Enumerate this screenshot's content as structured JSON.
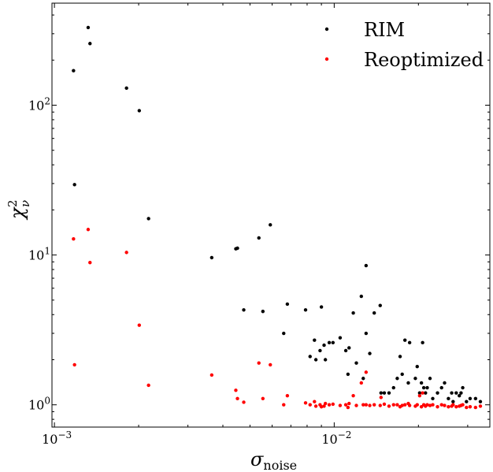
{
  "chart_data": {
    "type": "scatter",
    "xlabel": "σ",
    "xlabel_sub": "noise",
    "ylabel": "χ",
    "ylabel_sup": "2",
    "ylabel_sub": "ν",
    "xscale": "log",
    "yscale": "log",
    "xlim": [
      0.00098,
      0.036
    ],
    "ylim": [
      0.71,
      480
    ],
    "grid": false,
    "legend_position": "top-right",
    "x_ticks": [
      {
        "value": 0.001,
        "base": "10",
        "exp": "−3"
      },
      {
        "value": 0.01,
        "base": "10",
        "exp": "−2"
      }
    ],
    "y_ticks": [
      {
        "value": 1,
        "base": "10",
        "exp": "0"
      },
      {
        "value": 10,
        "base": "10",
        "exp": "1"
      },
      {
        "value": 100,
        "base": "10",
        "exp": "2"
      }
    ],
    "series": [
      {
        "name": "RIM",
        "color": "#000000",
        "points": [
          [
            0.00117,
            170
          ],
          [
            0.00118,
            29.5
          ],
          [
            0.00132,
            330
          ],
          [
            0.00134,
            258
          ],
          [
            0.00181,
            130
          ],
          [
            0.00201,
            92
          ],
          [
            0.00217,
            17.5
          ],
          [
            0.00365,
            9.6
          ],
          [
            0.00445,
            11.0
          ],
          [
            0.00451,
            11.1
          ],
          [
            0.00475,
            4.3
          ],
          [
            0.00538,
            13.0
          ],
          [
            0.00556,
            4.2
          ],
          [
            0.00591,
            15.9
          ],
          [
            0.0066,
            3.0
          ],
          [
            0.0068,
            4.7
          ],
          [
            0.0079,
            4.3
          ],
          [
            0.0082,
            2.1
          ],
          [
            0.0085,
            2.7
          ],
          [
            0.0086,
            2.0
          ],
          [
            0.0089,
            2.3
          ],
          [
            0.009,
            4.5
          ],
          [
            0.0092,
            2.5
          ],
          [
            0.0093,
            2.0
          ],
          [
            0.0096,
            2.6
          ],
          [
            0.0099,
            2.6
          ],
          [
            0.0105,
            2.8
          ],
          [
            0.011,
            2.3
          ],
          [
            0.0112,
            1.6
          ],
          [
            0.0113,
            2.4
          ],
          [
            0.0117,
            4.1
          ],
          [
            0.012,
            1.9
          ],
          [
            0.0125,
            5.3
          ],
          [
            0.0127,
            1.5
          ],
          [
            0.013,
            3.0
          ],
          [
            0.013,
            8.5
          ],
          [
            0.0134,
            2.2
          ],
          [
            0.0139,
            4.1
          ],
          [
            0.0146,
            4.6
          ],
          [
            0.0147,
            1.2
          ],
          [
            0.0151,
            1.2
          ],
          [
            0.0157,
            1.2
          ],
          [
            0.0163,
            1.3
          ],
          [
            0.0168,
            1.5
          ],
          [
            0.0172,
            2.1
          ],
          [
            0.0175,
            1.6
          ],
          [
            0.0179,
            2.7
          ],
          [
            0.0184,
            1.4
          ],
          [
            0.0186,
            2.6
          ],
          [
            0.0195,
            1.5
          ],
          [
            0.0198,
            1.8
          ],
          [
            0.0202,
            1.2
          ],
          [
            0.0205,
            1.4
          ],
          [
            0.0207,
            2.6
          ],
          [
            0.0209,
            1.3
          ],
          [
            0.0212,
            1.2
          ],
          [
            0.0215,
            1.3
          ],
          [
            0.022,
            1.5
          ],
          [
            0.0225,
            1.1
          ],
          [
            0.0234,
            1.2
          ],
          [
            0.0242,
            1.3
          ],
          [
            0.0248,
            1.4
          ],
          [
            0.0256,
            1.1
          ],
          [
            0.0263,
            1.2
          ],
          [
            0.0266,
            1.05
          ],
          [
            0.0273,
            1.2
          ],
          [
            0.028,
            1.15
          ],
          [
            0.0284,
            1.2
          ],
          [
            0.0288,
            1.3
          ],
          [
            0.0297,
            1.05
          ],
          [
            0.0306,
            1.1
          ],
          [
            0.032,
            1.1
          ],
          [
            0.0333,
            1.05
          ]
        ]
      },
      {
        "name": "Reoptimized",
        "color": "#ff0000",
        "points": [
          [
            0.00117,
            12.8
          ],
          [
            0.00118,
            1.85
          ],
          [
            0.00132,
            14.8
          ],
          [
            0.00134,
            8.9
          ],
          [
            0.00181,
            10.4
          ],
          [
            0.00201,
            3.4
          ],
          [
            0.00217,
            1.35
          ],
          [
            0.00365,
            1.58
          ],
          [
            0.00445,
            1.25
          ],
          [
            0.00451,
            1.1
          ],
          [
            0.00475,
            1.04
          ],
          [
            0.00538,
            1.9
          ],
          [
            0.00556,
            1.1
          ],
          [
            0.00591,
            1.85
          ],
          [
            0.0066,
            1.0
          ],
          [
            0.0068,
            1.15
          ],
          [
            0.0079,
            1.03
          ],
          [
            0.0082,
            1.0
          ],
          [
            0.0085,
            1.05
          ],
          [
            0.0086,
            0.98
          ],
          [
            0.0089,
            1.0
          ],
          [
            0.009,
            0.97
          ],
          [
            0.0092,
            0.98
          ],
          [
            0.0093,
            1.02
          ],
          [
            0.0096,
            1.0
          ],
          [
            0.0099,
            1.01
          ],
          [
            0.0105,
            0.99
          ],
          [
            0.011,
            1.0
          ],
          [
            0.0112,
            0.96
          ],
          [
            0.0113,
            1.02
          ],
          [
            0.0117,
            1.15
          ],
          [
            0.012,
            0.99
          ],
          [
            0.0125,
            1.4
          ],
          [
            0.0127,
            1.0
          ],
          [
            0.013,
            1.65
          ],
          [
            0.013,
            1.0
          ],
          [
            0.0134,
            0.99
          ],
          [
            0.0139,
            1.0
          ],
          [
            0.0146,
            0.99
          ],
          [
            0.0147,
            1.12
          ],
          [
            0.0151,
            1.01
          ],
          [
            0.0157,
            0.98
          ],
          [
            0.0163,
            1.0
          ],
          [
            0.0168,
            1.0
          ],
          [
            0.0172,
            0.97
          ],
          [
            0.0175,
            0.99
          ],
          [
            0.0179,
            1.0
          ],
          [
            0.0184,
            1.02
          ],
          [
            0.0186,
            0.99
          ],
          [
            0.0195,
            0.98
          ],
          [
            0.0198,
            1.0
          ],
          [
            0.0202,
            1.15
          ],
          [
            0.0205,
            0.97
          ],
          [
            0.0207,
            1.2
          ],
          [
            0.0209,
            1.0
          ],
          [
            0.0212,
            0.98
          ],
          [
            0.0215,
            1.0
          ],
          [
            0.022,
            0.99
          ],
          [
            0.0225,
            1.0
          ],
          [
            0.0234,
            0.97
          ],
          [
            0.0242,
            1.0
          ],
          [
            0.0248,
            0.99
          ],
          [
            0.0256,
            0.97
          ],
          [
            0.0263,
            0.98
          ],
          [
            0.0266,
            1.0
          ],
          [
            0.0273,
            0.97
          ],
          [
            0.028,
            0.98
          ],
          [
            0.0284,
            0.99
          ],
          [
            0.0288,
            1.0
          ],
          [
            0.0297,
            0.96
          ],
          [
            0.0306,
            0.97
          ],
          [
            0.032,
            0.96
          ],
          [
            0.0333,
            0.98
          ]
        ]
      }
    ]
  }
}
